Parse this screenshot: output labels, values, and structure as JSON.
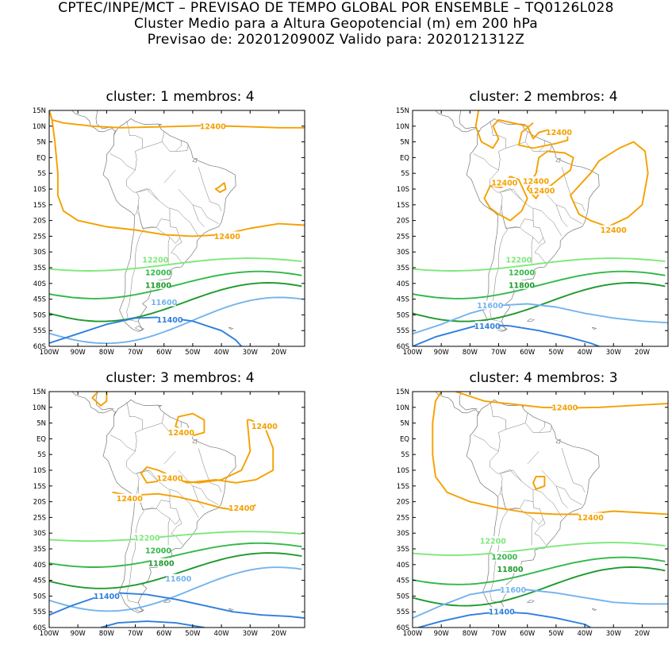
{
  "header": {
    "line1": "CPTEC/INPE/MCT – PREVISAO DE TEMPO GLOBAL POR ENSEMBLE – TQ0126L028",
    "line2": "Cluster Medio para a Altura Geopotencial (m) em 200 hPa",
    "line3": "Previsao de: 2020120900Z    Valido para: 2020121312Z"
  },
  "axes": {
    "y_labels": [
      "15N",
      "10N",
      "5N",
      "EQ",
      "5S",
      "10S",
      "15S",
      "20S",
      "25S",
      "30S",
      "35S",
      "40S",
      "45S",
      "50S",
      "55S",
      "60S"
    ],
    "x_labels": [
      "100W",
      "90W",
      "80W",
      "70W",
      "60W",
      "50W",
      "40W",
      "30W",
      "20W"
    ]
  },
  "colors": {
    "12400": "#f5a000",
    "12200": "#7ee87a",
    "12000": "#33b84a",
    "11800": "#1e9a2e",
    "11600": "#73b4ee",
    "11400": "#2f7fde",
    "coast": "#777777"
  },
  "panels": [
    {
      "title": "cluster: 1   membros: 4",
      "labels": [
        {
          "text": "12400",
          "lon": -43,
          "lat": 10,
          "level": "12400"
        },
        {
          "text": "12400",
          "lon": -38,
          "lat": -25,
          "level": "12400"
        },
        {
          "text": "12200",
          "lon": -63,
          "lat": -32.5,
          "level": "12200"
        },
        {
          "text": "12000",
          "lon": -62,
          "lat": -36.5,
          "level": "12000"
        },
        {
          "text": "11800",
          "lon": -62,
          "lat": -40.5,
          "level": "11800"
        },
        {
          "text": "11600",
          "lon": -60,
          "lat": -46,
          "level": "11600"
        },
        {
          "text": "11400",
          "lon": -58,
          "lat": -51.5,
          "level": "11400"
        }
      ]
    },
    {
      "title": "cluster: 2   membros: 4",
      "labels": [
        {
          "text": "12400",
          "lon": -49,
          "lat": 8,
          "level": "12400"
        },
        {
          "text": "12400",
          "lon": -68,
          "lat": -8,
          "level": "12400"
        },
        {
          "text": "12400",
          "lon": -57,
          "lat": -7.5,
          "level": "12400"
        },
        {
          "text": "12400",
          "lon": -55,
          "lat": -10.5,
          "level": "12400"
        },
        {
          "text": "12400",
          "lon": -30,
          "lat": -23,
          "level": "12400"
        },
        {
          "text": "12200",
          "lon": -63,
          "lat": -32.5,
          "level": "12200"
        },
        {
          "text": "12000",
          "lon": -62,
          "lat": -36.5,
          "level": "12000"
        },
        {
          "text": "11800",
          "lon": -62,
          "lat": -40.5,
          "level": "11800"
        },
        {
          "text": "11600",
          "lon": -73,
          "lat": -47,
          "level": "11600"
        },
        {
          "text": "11400",
          "lon": -74,
          "lat": -53.5,
          "level": "11400"
        }
      ]
    },
    {
      "title": "cluster: 3   membros: 4",
      "labels": [
        {
          "text": "12400",
          "lon": -54,
          "lat": 2,
          "level": "12400"
        },
        {
          "text": "12400",
          "lon": -25,
          "lat": 4,
          "level": "12400"
        },
        {
          "text": "12400",
          "lon": -58,
          "lat": -12.5,
          "level": "12400"
        },
        {
          "text": "12400",
          "lon": -72,
          "lat": -19,
          "level": "12400"
        },
        {
          "text": "12400",
          "lon": -33,
          "lat": -22,
          "level": "12400"
        },
        {
          "text": "12200",
          "lon": -66,
          "lat": -31.5,
          "level": "12200"
        },
        {
          "text": "12000",
          "lon": -62,
          "lat": -35.5,
          "level": "12000"
        },
        {
          "text": "11800",
          "lon": -61,
          "lat": -39.5,
          "level": "11800"
        },
        {
          "text": "11600",
          "lon": -55,
          "lat": -44.5,
          "level": "11600"
        },
        {
          "text": "11400",
          "lon": -80,
          "lat": -50,
          "level": "11400"
        }
      ]
    },
    {
      "title": "cluster: 4   membros: 3",
      "labels": [
        {
          "text": "12400",
          "lon": -47,
          "lat": 10,
          "level": "12400"
        },
        {
          "text": "12400",
          "lon": -38,
          "lat": -25,
          "level": "12400"
        },
        {
          "text": "12200",
          "lon": -72,
          "lat": -32.5,
          "level": "12200"
        },
        {
          "text": "12000",
          "lon": -68,
          "lat": -37.5,
          "level": "12000"
        },
        {
          "text": "11800",
          "lon": -66,
          "lat": -41.5,
          "level": "11800"
        },
        {
          "text": "11600",
          "lon": -65,
          "lat": -48,
          "level": "11600"
        },
        {
          "text": "11400",
          "lon": -69,
          "lat": -55,
          "level": "11400"
        }
      ]
    }
  ]
}
